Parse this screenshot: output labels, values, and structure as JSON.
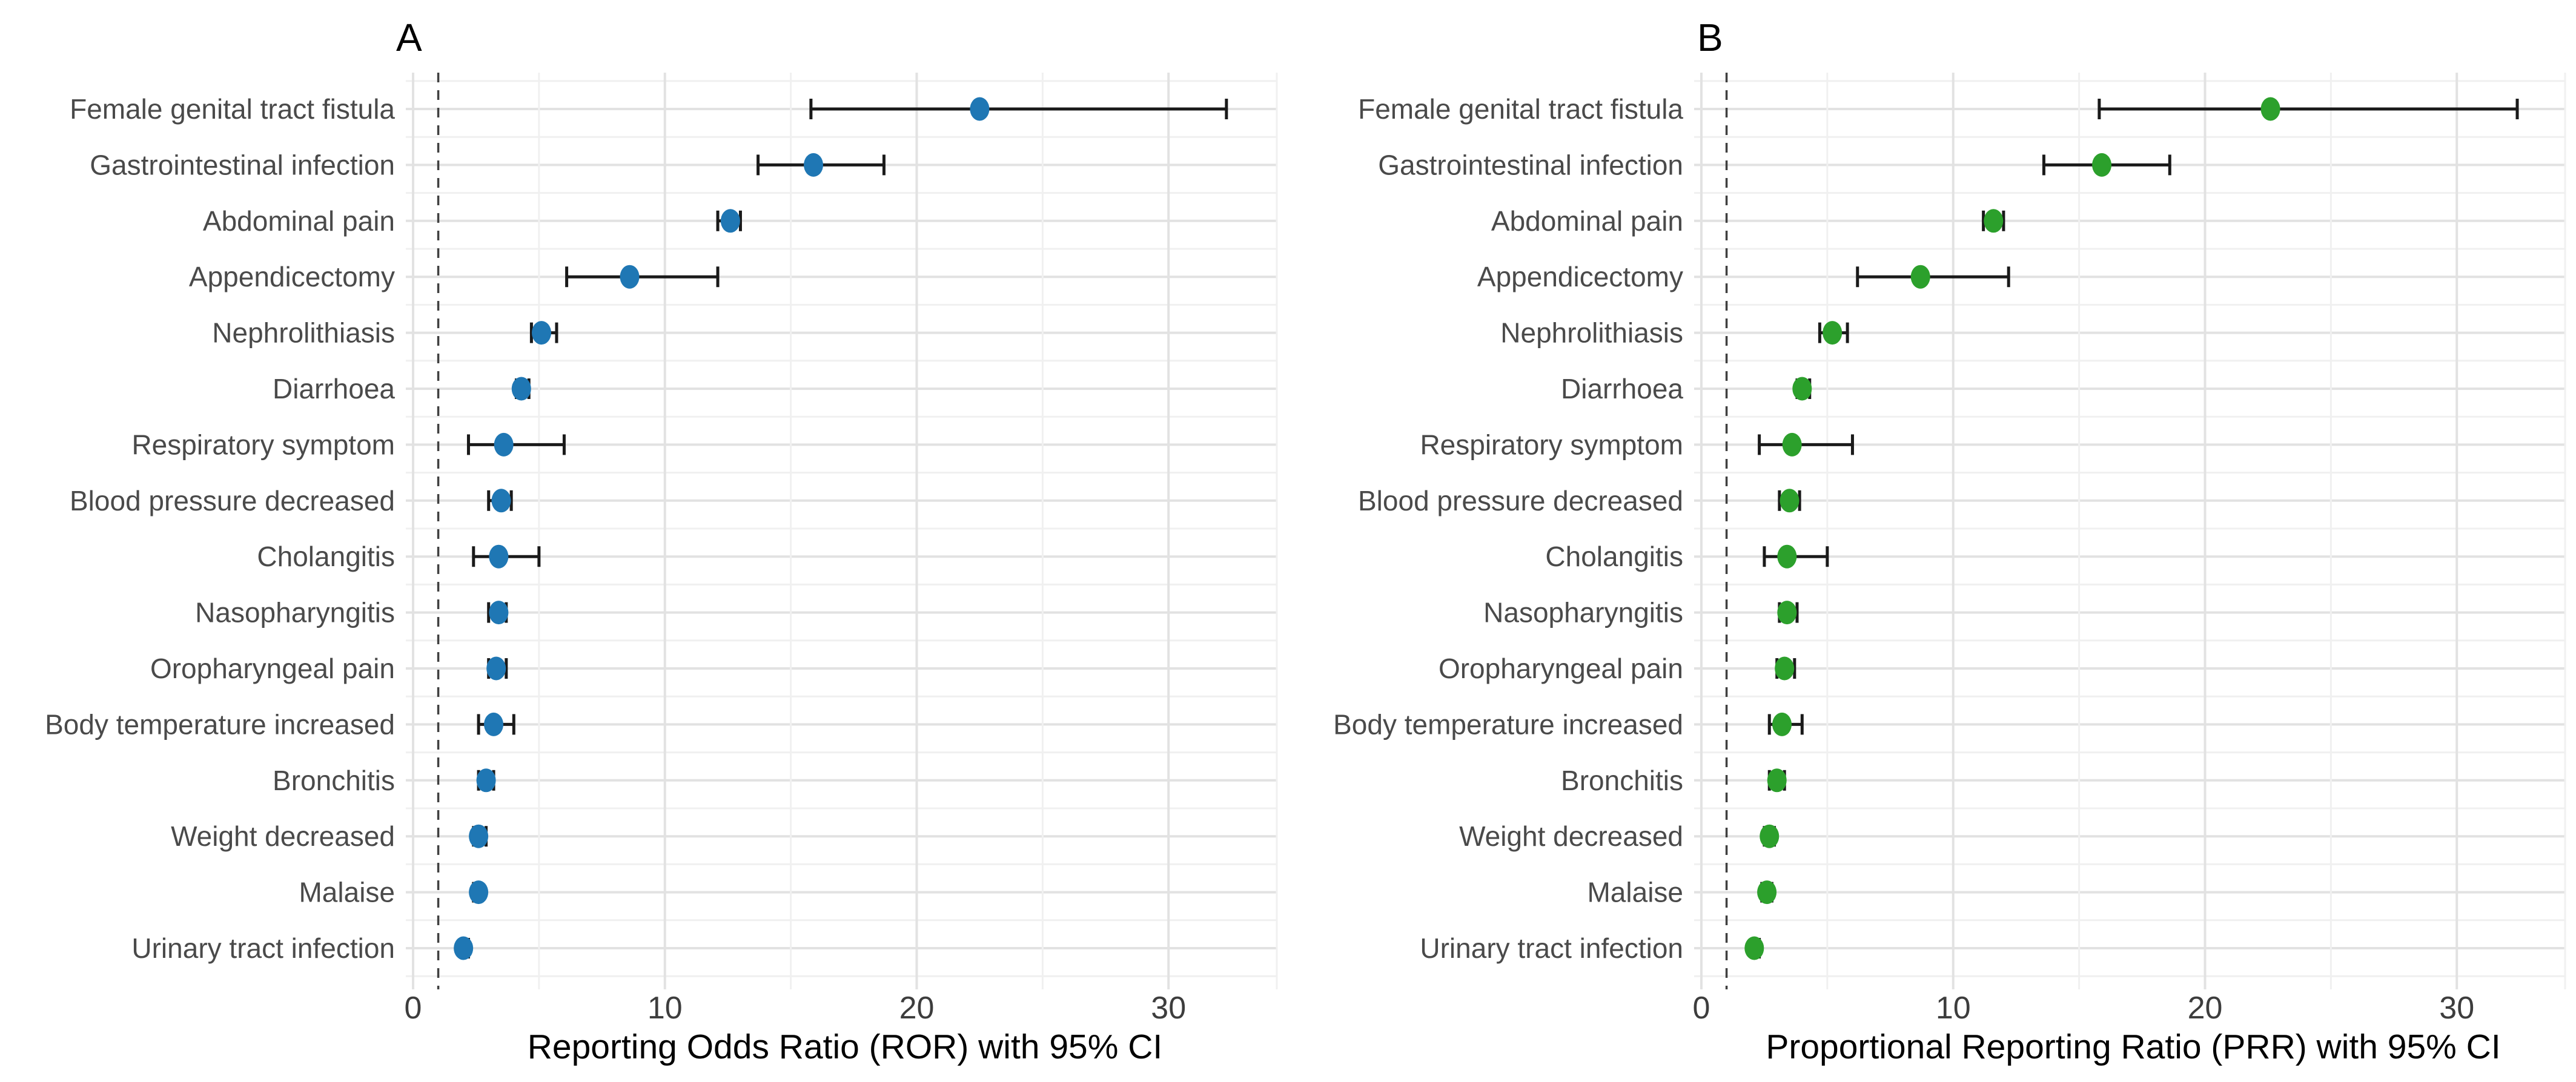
{
  "figure": {
    "background": "#ffffff",
    "panel_count": 2
  },
  "chart_data": [
    {
      "type": "scatter",
      "panel_tag": "A",
      "xlabel": "Reporting Odds Ratio (ROR) with 95% CI",
      "ylabel": "",
      "xlim": [
        0,
        34.3
      ],
      "xticks": [
        0,
        10,
        20,
        30
      ],
      "minor_xticks": [
        5,
        15,
        25
      ],
      "grid": true,
      "legend_position": "none",
      "reference_line_x": 1,
      "point_color": "#1f77b4",
      "error_bar_color": "#1a1a1a",
      "categories": [
        "Female genital tract fistula",
        "Gastrointestinal infection",
        "Abdominal pain",
        "Appendicectomy",
        "Nephrolithiasis",
        "Diarrhoea",
        "Respiratory symptom",
        "Blood pressure decreased",
        "Cholangitis",
        "Nasopharyngitis",
        "Oropharyngeal pain",
        "Body temperature increased",
        "Bronchitis",
        "Weight decreased",
        "Malaise",
        "Urinary tract infection"
      ],
      "series": [
        {
          "name": "ROR",
          "values": [
            22.5,
            15.9,
            12.6,
            8.6,
            5.1,
            4.3,
            3.6,
            3.5,
            3.4,
            3.4,
            3.3,
            3.2,
            2.9,
            2.6,
            2.6,
            2.0
          ],
          "ci_low": [
            15.8,
            13.7,
            12.1,
            6.1,
            4.7,
            4.1,
            2.2,
            3.0,
            2.4,
            3.0,
            3.0,
            2.6,
            2.6,
            2.4,
            2.4,
            1.9
          ],
          "ci_high": [
            32.3,
            18.7,
            13.0,
            12.1,
            5.7,
            4.6,
            6.0,
            3.9,
            5.0,
            3.7,
            3.7,
            4.0,
            3.2,
            2.9,
            2.7,
            2.2
          ]
        }
      ]
    },
    {
      "type": "scatter",
      "panel_tag": "B",
      "xlabel": "Proportional Reporting Ratio (PRR) with 95% CI",
      "ylabel": "",
      "xlim": [
        0,
        34.3
      ],
      "xticks": [
        0,
        10,
        20,
        30
      ],
      "minor_xticks": [
        5,
        15,
        25
      ],
      "grid": true,
      "legend_position": "none",
      "reference_line_x": 1,
      "point_color": "#2ca02c",
      "error_bar_color": "#1a1a1a",
      "categories": [
        "Female genital tract fistula",
        "Gastrointestinal infection",
        "Abdominal pain",
        "Appendicectomy",
        "Nephrolithiasis",
        "Diarrhoea",
        "Respiratory symptom",
        "Blood pressure decreased",
        "Cholangitis",
        "Nasopharyngitis",
        "Oropharyngeal pain",
        "Body temperature increased",
        "Bronchitis",
        "Weight decreased",
        "Malaise",
        "Urinary tract infection"
      ],
      "series": [
        {
          "name": "PRR",
          "values": [
            22.6,
            15.9,
            11.6,
            8.7,
            5.2,
            4.0,
            3.6,
            3.5,
            3.4,
            3.4,
            3.3,
            3.2,
            3.0,
            2.7,
            2.6,
            2.1
          ],
          "ci_low": [
            15.8,
            13.6,
            11.2,
            6.2,
            4.7,
            3.8,
            2.3,
            3.1,
            2.5,
            3.1,
            3.0,
            2.7,
            2.7,
            2.5,
            2.4,
            2.0
          ],
          "ci_high": [
            32.4,
            18.6,
            12.0,
            12.2,
            5.8,
            4.3,
            6.0,
            3.9,
            5.0,
            3.8,
            3.7,
            4.0,
            3.3,
            2.9,
            2.8,
            2.3
          ]
        }
      ]
    }
  ]
}
